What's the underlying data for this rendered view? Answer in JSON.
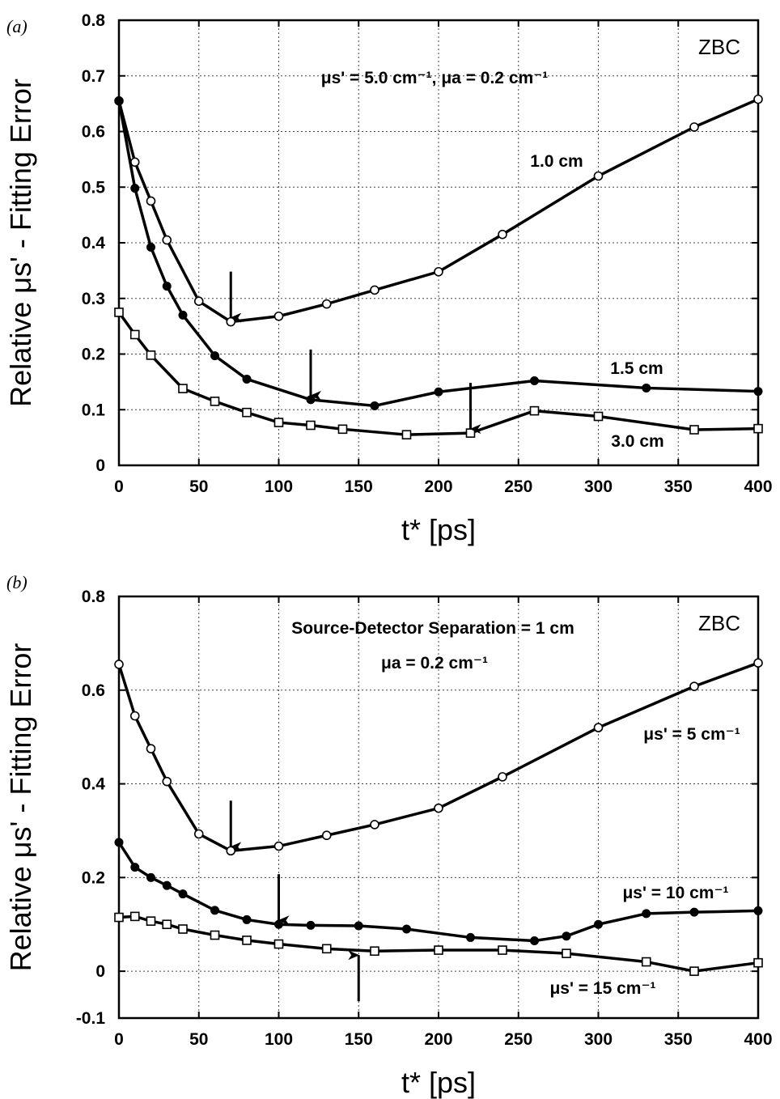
{
  "chart_data": [
    {
      "type": "line",
      "panel_label": "(a)",
      "xlabel": "t* [ps]",
      "ylabel": "Relative μs' - Fitting Error",
      "xlim": [
        0,
        400
      ],
      "ylim": [
        0,
        0.8
      ],
      "xticks": [
        0,
        50,
        100,
        150,
        200,
        250,
        300,
        350,
        400
      ],
      "yticks": [
        0,
        0.1,
        0.2,
        0.3,
        0.4,
        0.5,
        0.6,
        0.7,
        0.8
      ],
      "ytick_labels": [
        "0",
        "0.1",
        "0.2",
        "0.3",
        "0.4",
        "0.5",
        "0.6",
        "0.7",
        "0.8"
      ],
      "grid": true,
      "corner_label": "ZBC",
      "condition_text": "μs' = 5.0 cm⁻¹, μa = 0.2 cm⁻¹",
      "series": [
        {
          "name": "1.0 cm",
          "marker": "open-circle",
          "x": [
            0,
            10,
            20,
            30,
            50,
            70,
            100,
            130,
            160,
            200,
            240,
            300,
            360,
            400
          ],
          "y": [
            0.655,
            0.545,
            0.475,
            0.405,
            0.295,
            0.258,
            0.268,
            0.29,
            0.315,
            0.348,
            0.415,
            0.52,
            0.608,
            0.658
          ]
        },
        {
          "name": "1.5 cm",
          "marker": "filled-circle",
          "x": [
            0,
            10,
            20,
            30,
            40,
            60,
            80,
            120,
            160,
            200,
            260,
            330,
            400
          ],
          "y": [
            0.655,
            0.498,
            0.392,
            0.322,
            0.27,
            0.197,
            0.155,
            0.118,
            0.107,
            0.132,
            0.152,
            0.139,
            0.133
          ]
        },
        {
          "name": "3.0 cm",
          "marker": "open-square",
          "x": [
            0,
            10,
            20,
            40,
            60,
            80,
            100,
            120,
            140,
            180,
            220,
            260,
            300,
            360,
            400
          ],
          "y": [
            0.275,
            0.235,
            0.198,
            0.138,
            0.115,
            0.095,
            0.077,
            0.072,
            0.065,
            0.055,
            0.058,
            0.098,
            0.088,
            0.064,
            0.066
          ]
        }
      ],
      "arrows": [
        {
          "x": 70,
          "y": 0.258,
          "direction": "down"
        },
        {
          "x": 120,
          "y": 0.118,
          "direction": "down"
        },
        {
          "x": 220,
          "y": 0.058,
          "direction": "down"
        }
      ]
    },
    {
      "type": "line",
      "panel_label": "(b)",
      "xlabel": "t* [ps]",
      "ylabel": "Relative μs' - Fitting Error",
      "xlim": [
        0,
        400
      ],
      "ylim": [
        -0.1,
        0.8
      ],
      "xticks": [
        0,
        50,
        100,
        150,
        200,
        250,
        300,
        350,
        400
      ],
      "yticks": [
        -0.1,
        0,
        0.2,
        0.4,
        0.6,
        0.8
      ],
      "ytick_labels": [
        "-0.1",
        "0",
        "0.2",
        "0.4",
        "0.6",
        "0.8"
      ],
      "grid": true,
      "corner_label": "ZBC",
      "condition_text_1": "Source-Detector Separation = 1 cm",
      "condition_text_2": "μa = 0.2 cm⁻¹",
      "series": [
        {
          "name": "μs' = 5 cm⁻¹",
          "marker": "open-circle",
          "x": [
            0,
            10,
            20,
            30,
            50,
            70,
            100,
            130,
            160,
            200,
            240,
            300,
            360,
            400
          ],
          "y": [
            0.655,
            0.545,
            0.475,
            0.405,
            0.293,
            0.257,
            0.267,
            0.29,
            0.313,
            0.348,
            0.415,
            0.52,
            0.608,
            0.658
          ]
        },
        {
          "name": "μs' = 10 cm⁻¹",
          "marker": "filled-circle",
          "x": [
            0,
            10,
            20,
            30,
            40,
            60,
            80,
            100,
            120,
            150,
            180,
            220,
            260,
            280,
            300,
            330,
            360,
            400
          ],
          "y": [
            0.275,
            0.222,
            0.2,
            0.183,
            0.165,
            0.13,
            0.11,
            0.1,
            0.098,
            0.097,
            0.09,
            0.072,
            0.065,
            0.075,
            0.1,
            0.123,
            0.126,
            0.129
          ]
        },
        {
          "name": "μs' = 15 cm⁻¹",
          "marker": "open-square",
          "x": [
            0,
            10,
            20,
            30,
            40,
            60,
            80,
            100,
            130,
            160,
            200,
            240,
            280,
            330,
            360,
            400
          ],
          "y": [
            0.115,
            0.117,
            0.107,
            0.1,
            0.09,
            0.077,
            0.066,
            0.058,
            0.048,
            0.043,
            0.045,
            0.045,
            0.038,
            0.02,
            0.0,
            0.018
          ]
        }
      ],
      "arrows": [
        {
          "x": 70,
          "y": 0.257,
          "direction": "down"
        },
        {
          "x": 100,
          "y": 0.1,
          "direction": "down"
        },
        {
          "x": 150,
          "y": 0.043,
          "direction": "up"
        }
      ]
    }
  ]
}
